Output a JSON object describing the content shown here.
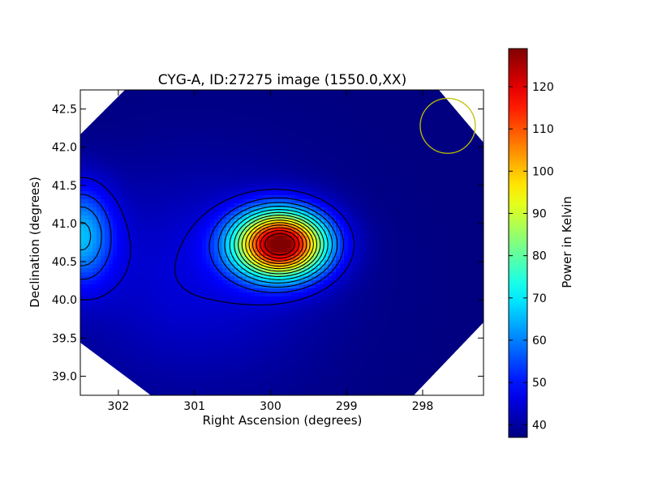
{
  "chart_data": {
    "type": "heatmap",
    "title": "CYG-A, ID:27275 image (1550.0,XX)",
    "xlabel": "Right Ascension (degrees)",
    "ylabel": "Declination (degrees)",
    "xlim": [
      302.5,
      297.2
    ],
    "ylim": [
      38.75,
      42.75
    ],
    "x_ticks": [
      {
        "value": 302,
        "label": "302"
      },
      {
        "value": 301,
        "label": "301"
      },
      {
        "value": 300,
        "label": "300"
      },
      {
        "value": 299,
        "label": "299"
      },
      {
        "value": 298,
        "label": "298"
      }
    ],
    "y_ticks": [
      {
        "value": 39.0,
        "label": "39.0"
      },
      {
        "value": 39.5,
        "label": "39.5"
      },
      {
        "value": 40.0,
        "label": "40.0"
      },
      {
        "value": 40.5,
        "label": "40.5"
      },
      {
        "value": 41.0,
        "label": "41.0"
      },
      {
        "value": 41.5,
        "label": "41.5"
      },
      {
        "value": 42.0,
        "label": "42.0"
      },
      {
        "value": 42.5,
        "label": "42.5"
      }
    ],
    "colorbar": {
      "label": "Power in Kelvin",
      "colormap": "jet",
      "range": [
        37,
        129
      ],
      "ticks": [
        {
          "value": 40,
          "label": "40"
        },
        {
          "value": 50,
          "label": "50"
        },
        {
          "value": 60,
          "label": "60"
        },
        {
          "value": 70,
          "label": "70"
        },
        {
          "value": 80,
          "label": "80"
        },
        {
          "value": 90,
          "label": "90"
        },
        {
          "value": 100,
          "label": "100"
        },
        {
          "value": 110,
          "label": "110"
        },
        {
          "value": 120,
          "label": "120"
        }
      ]
    },
    "background_level": 37,
    "sources": [
      {
        "ra": 299.87,
        "dec": 40.73,
        "peak_kelvin": 129,
        "sigma_ra": 0.42,
        "sigma_dec": 0.3
      },
      {
        "ra": 302.5,
        "dec": 40.85,
        "peak_kelvin": 63,
        "sigma_ra": 0.3,
        "sigma_dec": 0.45
      },
      {
        "ra": 301.0,
        "dec": 40.3,
        "peak_kelvin": 8,
        "sigma_ra": 1.2,
        "sigma_dec": 1.0
      }
    ],
    "contour_levels": [
      45,
      52,
      58,
      64,
      70,
      76,
      82,
      88,
      94,
      100,
      106,
      112,
      118,
      124
    ],
    "beam": {
      "ra": 297.67,
      "dec": 42.28,
      "radius_deg": 0.36,
      "color": "#bfbf00"
    },
    "grid": false
  }
}
